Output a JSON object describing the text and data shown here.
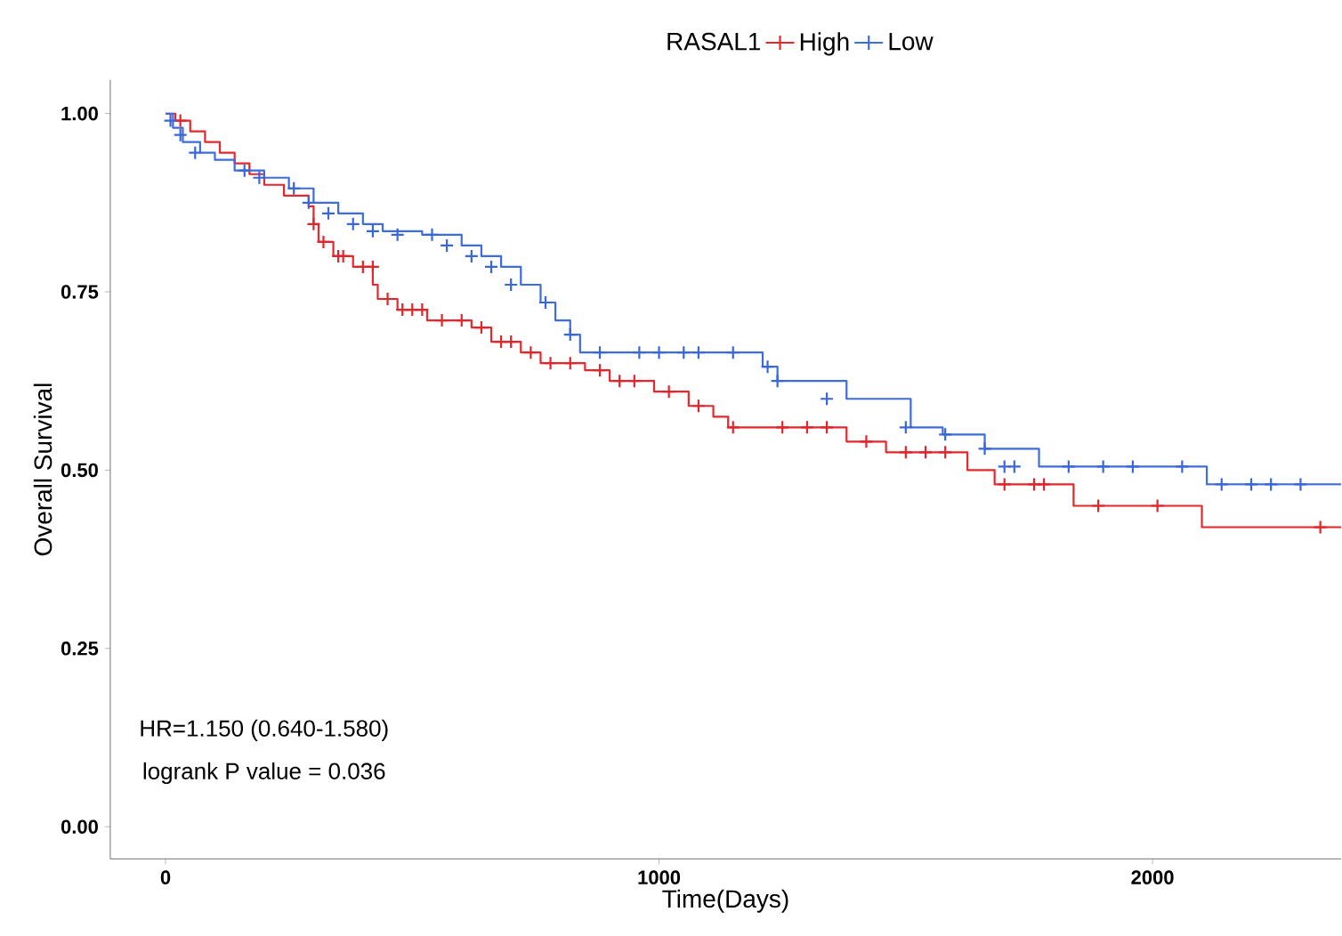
{
  "chart_data": {
    "type": "step",
    "xlabel": "Time(Days)",
    "ylabel": "Overall Survival",
    "legend_title": "RASAL1",
    "legend": "top",
    "grid": false,
    "xlim": [
      -112,
      2382
    ],
    "xticks": [
      0,
      1000,
      2000
    ],
    "ylim": [
      -0.045,
      1.047
    ],
    "yticks": [
      {
        "value": 0,
        "label": "0.00"
      },
      {
        "value": 0.25,
        "label": "0.25"
      },
      {
        "value": 0.5,
        "label": "0.50"
      },
      {
        "value": 0.75,
        "label": "0.75"
      },
      {
        "value": 1,
        "label": "1.00"
      }
    ],
    "annotations": [
      "HR=1.150 (0.640-1.580)",
      "logrank P value = 0.036"
    ],
    "series": [
      {
        "type": "step",
        "name": "High",
        "color": "#e8262b",
        "line_style": "solid",
        "x": [
          0,
          20,
          50,
          80,
          110,
          140,
          170,
          200,
          240,
          290,
          300,
          310,
          340,
          380,
          420,
          430,
          470,
          530,
          620,
          660,
          720,
          760,
          850,
          900,
          990,
          1060,
          1110,
          1140,
          1380,
          1460,
          1625,
          1680,
          1840,
          2100,
          2382
        ],
        "values": [
          1.0,
          0.99,
          0.975,
          0.96,
          0.945,
          0.93,
          0.915,
          0.9,
          0.885,
          0.87,
          0.845,
          0.82,
          0.8,
          0.785,
          0.76,
          0.74,
          0.725,
          0.71,
          0.7,
          0.68,
          0.665,
          0.65,
          0.64,
          0.625,
          0.61,
          0.59,
          0.575,
          0.56,
          0.54,
          0.525,
          0.5,
          0.48,
          0.45,
          0.42,
          0.42
        ]
      },
      {
        "type": "step",
        "name": "Low",
        "color": "#3d6be0",
        "line_style": "solid",
        "x": [
          0,
          15,
          35,
          70,
          100,
          140,
          200,
          250,
          300,
          350,
          400,
          440,
          520,
          600,
          640,
          680,
          720,
          760,
          790,
          820,
          840,
          1210,
          1240,
          1380,
          1510,
          1575,
          1660,
          1770,
          2110,
          2382
        ],
        "values": [
          1.0,
          0.98,
          0.96,
          0.945,
          0.935,
          0.92,
          0.91,
          0.895,
          0.875,
          0.86,
          0.845,
          0.835,
          0.83,
          0.815,
          0.8,
          0.785,
          0.76,
          0.735,
          0.71,
          0.69,
          0.665,
          0.645,
          0.625,
          0.6,
          0.56,
          0.55,
          0.53,
          0.505,
          0.48,
          0.48
        ]
      },
      {
        "type": "scatter",
        "color": "#e3242a",
        "marker": "cross",
        "x": [
          30,
          300,
          320,
          350,
          360,
          400,
          420,
          450,
          480,
          500,
          520,
          560,
          600,
          640,
          680,
          700,
          740,
          780,
          820,
          880,
          920,
          950,
          1020,
          1080,
          1150,
          1250,
          1300,
          1340,
          1420,
          1500,
          1540,
          1580,
          1700,
          1760,
          1780,
          1890,
          2010,
          2340
        ],
        "values": [
          0.99,
          0.845,
          0.82,
          0.8,
          0.8,
          0.785,
          0.785,
          0.74,
          0.725,
          0.725,
          0.725,
          0.71,
          0.71,
          0.7,
          0.68,
          0.68,
          0.665,
          0.65,
          0.65,
          0.64,
          0.625,
          0.625,
          0.61,
          0.59,
          0.56,
          0.56,
          0.56,
          0.56,
          0.54,
          0.525,
          0.525,
          0.525,
          0.48,
          0.48,
          0.48,
          0.45,
          0.45,
          0.42
        ]
      },
      {
        "type": "scatter",
        "color": "#3866db",
        "marker": "cross",
        "x": [
          10,
          30,
          60,
          160,
          190,
          260,
          290,
          330,
          380,
          420,
          470,
          540,
          570,
          620,
          660,
          700,
          770,
          820,
          880,
          960,
          1000,
          1050,
          1080,
          1150,
          1220,
          1240,
          1340,
          1500,
          1580,
          1660,
          1700,
          1720,
          1830,
          1900,
          1960,
          2060,
          2140,
          2200,
          2240,
          2300
        ],
        "values": [
          0.99,
          0.97,
          0.945,
          0.92,
          0.91,
          0.895,
          0.875,
          0.86,
          0.845,
          0.835,
          0.83,
          0.83,
          0.815,
          0.8,
          0.785,
          0.76,
          0.735,
          0.69,
          0.665,
          0.665,
          0.665,
          0.665,
          0.665,
          0.665,
          0.645,
          0.625,
          0.6,
          0.56,
          0.55,
          0.53,
          0.505,
          0.505,
          0.505,
          0.505,
          0.505,
          0.505,
          0.48,
          0.48,
          0.48,
          0.48
        ]
      }
    ]
  }
}
